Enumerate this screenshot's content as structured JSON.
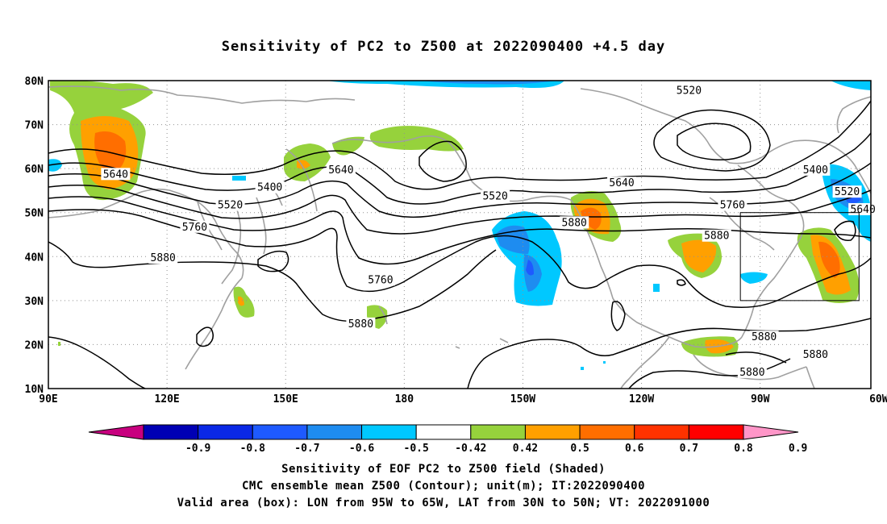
{
  "title": "Sensitivity of PC2 to Z500 at 2022090400 +4.5 day",
  "latitude_labels": [
    "80N",
    "70N",
    "60N",
    "50N",
    "40N",
    "30N",
    "20N",
    "10N"
  ],
  "longitude_labels": [
    "90E",
    "120E",
    "150E",
    "180",
    "150W",
    "120W",
    "90W",
    "60W"
  ],
  "contour_labels": [
    {
      "text": "5520",
      "lon": -108,
      "lat": 77.5
    },
    {
      "text": "5640",
      "lon": 107,
      "lat": 58.5
    },
    {
      "text": "5400",
      "lon": 146,
      "lat": 55.5
    },
    {
      "text": "5640",
      "lon": 164,
      "lat": 59.5
    },
    {
      "text": "5520",
      "lon": 136,
      "lat": 51.5
    },
    {
      "text": "5760",
      "lon": 127,
      "lat": 46.5
    },
    {
      "text": "5880",
      "lon": 119,
      "lat": 39.5
    },
    {
      "text": "5520",
      "lon": -157,
      "lat": 53.5
    },
    {
      "text": "5640",
      "lon": -125,
      "lat": 56.5
    },
    {
      "text": "5760",
      "lon": -97,
      "lat": 51.5
    },
    {
      "text": "5880",
      "lon": -137,
      "lat": 47.5
    },
    {
      "text": "5880",
      "lon": -101,
      "lat": 44.5
    },
    {
      "text": "5760",
      "lon": 174,
      "lat": 34.5
    },
    {
      "text": "5880",
      "lon": 169,
      "lat": 24.5
    },
    {
      "text": "5400",
      "lon": -76,
      "lat": 59.5
    },
    {
      "text": "5520",
      "lon": -68,
      "lat": 54.5
    },
    {
      "text": "5640",
      "lon": -64,
      "lat": 50.5
    },
    {
      "text": "5880",
      "lon": -89,
      "lat": 21.5
    },
    {
      "text": "5880",
      "lon": -76,
      "lat": 17.5
    },
    {
      "text": "5880",
      "lon": -92,
      "lat": 13.5
    }
  ],
  "colorbar": {
    "labels": [
      "-0.9",
      "-0.8",
      "-0.7",
      "-0.6",
      "-0.5",
      "-0.42",
      "0.42",
      "0.5",
      "0.6",
      "0.7",
      "0.8",
      "0.9"
    ],
    "colors": [
      "#c8007f",
      "#0000b4",
      "#0a28e6",
      "#1e5aff",
      "#1e8cf0",
      "#00c8ff",
      "#ffffff",
      "#96d23c",
      "#ffa000",
      "#ff6e00",
      "#ff3200",
      "#ff0000",
      "#ff96c8"
    ]
  },
  "valid_box": {
    "lon_min": -95,
    "lon_max": -65,
    "lat_min": 30,
    "lat_max": 50
  },
  "caption": {
    "line1": "Sensitivity of EOF PC2 to Z500 field (Shaded)",
    "line2": "CMC ensemble mean Z500 (Contour); unit(m); IT:2022090400",
    "line3": "Valid area (box): LON from 95W to 65W, LAT from 30N to 50N; VT: 2022091000"
  }
}
